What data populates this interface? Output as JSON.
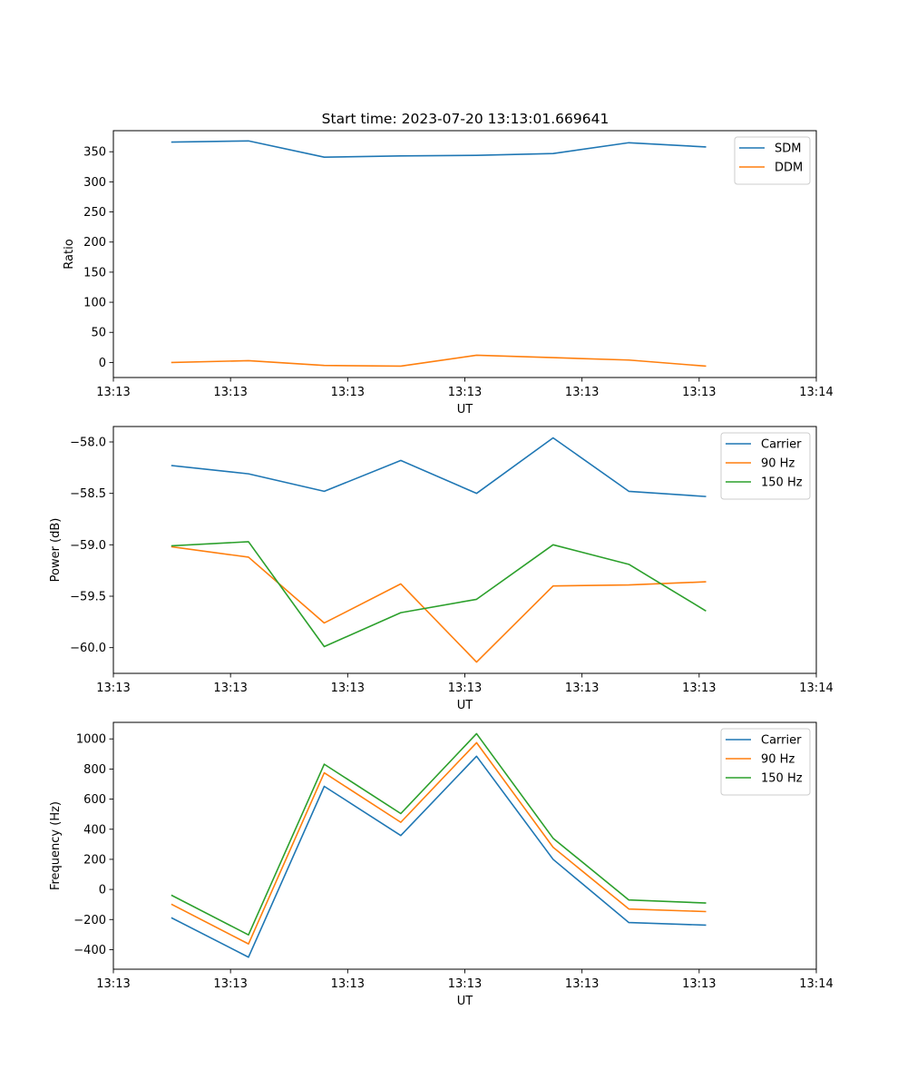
{
  "title": "Start time: 2023-07-20 13:13:01.669641",
  "chart_data": [
    {
      "type": "line",
      "title": "Start time: 2023-07-20 13:13:01.669641",
      "xlabel": "UT",
      "ylabel": "Ratio",
      "xlim": [
        0,
        9
      ],
      "x_ticks": [
        0,
        1.5,
        3,
        4.5,
        6,
        7.5,
        9
      ],
      "x_tick_labels": [
        "13:13",
        "13:13",
        "13:13",
        "13:13",
        "13:13",
        "13:13",
        "13:14"
      ],
      "ylim": [
        -25,
        385
      ],
      "y_ticks": [
        0,
        50,
        100,
        150,
        200,
        250,
        300,
        350
      ],
      "legend_position": "top-right",
      "x": [
        0.75,
        1.73,
        2.7,
        3.68,
        4.65,
        5.63,
        6.6,
        7.58
      ],
      "series": [
        {
          "name": "SDM",
          "color": "#1f77b4",
          "values": [
            366,
            368,
            341,
            343,
            344,
            347,
            365,
            358
          ]
        },
        {
          "name": "DDM",
          "color": "#ff7f0e",
          "values": [
            0,
            3,
            -5,
            -6,
            12,
            8,
            4,
            -6
          ]
        }
      ]
    },
    {
      "type": "line",
      "xlabel": "UT",
      "ylabel": "Power (dB)",
      "xlim": [
        0,
        9
      ],
      "x_ticks": [
        0,
        1.5,
        3,
        4.5,
        6,
        7.5,
        9
      ],
      "x_tick_labels": [
        "13:13",
        "13:13",
        "13:13",
        "13:13",
        "13:13",
        "13:13",
        "13:14"
      ],
      "ylim": [
        -60.25,
        -57.85
      ],
      "y_ticks": [
        -60.0,
        -59.5,
        -59.0,
        -58.5,
        -58.0
      ],
      "y_tick_labels": [
        "−60.0",
        "−59.5",
        "−59.0",
        "−58.5",
        "−58.0"
      ],
      "legend_position": "top-right",
      "x": [
        0.75,
        1.73,
        2.7,
        3.68,
        4.65,
        5.63,
        6.6,
        7.58
      ],
      "series": [
        {
          "name": "Carrier",
          "color": "#1f77b4",
          "values": [
            -58.23,
            -58.31,
            -58.48,
            -58.18,
            -58.5,
            -57.96,
            -58.48,
            -58.53
          ]
        },
        {
          "name": "90 Hz",
          "color": "#ff7f0e",
          "values": [
            -59.02,
            -59.12,
            -59.76,
            -59.38,
            -60.14,
            -59.4,
            -59.39,
            -59.36
          ]
        },
        {
          "name": "150 Hz",
          "color": "#2ca02c",
          "values": [
            -59.01,
            -58.97,
            -59.99,
            -59.66,
            -59.53,
            -59.0,
            -59.19,
            -59.64
          ]
        }
      ]
    },
    {
      "type": "line",
      "xlabel": "UT",
      "ylabel": "Frequency (Hz)",
      "xlim": [
        0,
        9
      ],
      "x_ticks": [
        0,
        1.5,
        3,
        4.5,
        6,
        7.5,
        9
      ],
      "x_tick_labels": [
        "13:13",
        "13:13",
        "13:13",
        "13:13",
        "13:13",
        "13:13",
        "13:14"
      ],
      "ylim": [
        -530,
        1110
      ],
      "y_ticks": [
        -400,
        -200,
        0,
        200,
        400,
        600,
        800,
        1000
      ],
      "y_tick_labels": [
        "−400",
        "−200",
        "0",
        "200",
        "400",
        "600",
        "800",
        "1000"
      ],
      "legend_position": "top-right",
      "x": [
        0.75,
        1.73,
        2.7,
        3.68,
        4.65,
        5.63,
        6.6,
        7.58
      ],
      "series": [
        {
          "name": "Carrier",
          "color": "#1f77b4",
          "values": [
            -190,
            -450,
            685,
            358,
            885,
            200,
            -220,
            -237
          ]
        },
        {
          "name": "90 Hz",
          "color": "#ff7f0e",
          "values": [
            -100,
            -362,
            775,
            446,
            975,
            280,
            -130,
            -147
          ]
        },
        {
          "name": "150 Hz",
          "color": "#2ca02c",
          "values": [
            -40,
            -302,
            832,
            504,
            1035,
            340,
            -70,
            -90
          ]
        }
      ]
    }
  ]
}
